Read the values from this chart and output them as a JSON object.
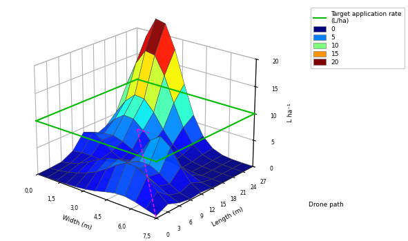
{
  "xlabel": "Width (m)",
  "ylabel": "Length (m)",
  "zlabel": "L ha⁻¹",
  "x_ticks": [
    0.0,
    1.5,
    3.0,
    4.5,
    6.0,
    7.5
  ],
  "x_tick_labels": [
    "0,0",
    "1,5",
    "3,0",
    "4,5",
    "6,0",
    "7,5"
  ],
  "y_ticks": [
    0,
    3,
    6,
    9,
    12,
    15,
    18,
    21,
    24,
    27
  ],
  "y_tick_labels": [
    "0",
    "3",
    "6",
    "9",
    "12",
    "15",
    "18",
    "21",
    "24",
    "27"
  ],
  "z_ticks": [
    0,
    5,
    10,
    15,
    20
  ],
  "target_rate": 10,
  "target_rate_label": "Target application rate\n(L/ha)",
  "target_rate_color": "#00bb00",
  "drone_path_label": "Drone path",
  "legend_values": [
    0,
    5,
    10,
    15,
    20
  ],
  "colormap": "jet",
  "background_color": "#ffffff",
  "surface_alpha": 0.95,
  "elev": 22,
  "azim": -50
}
